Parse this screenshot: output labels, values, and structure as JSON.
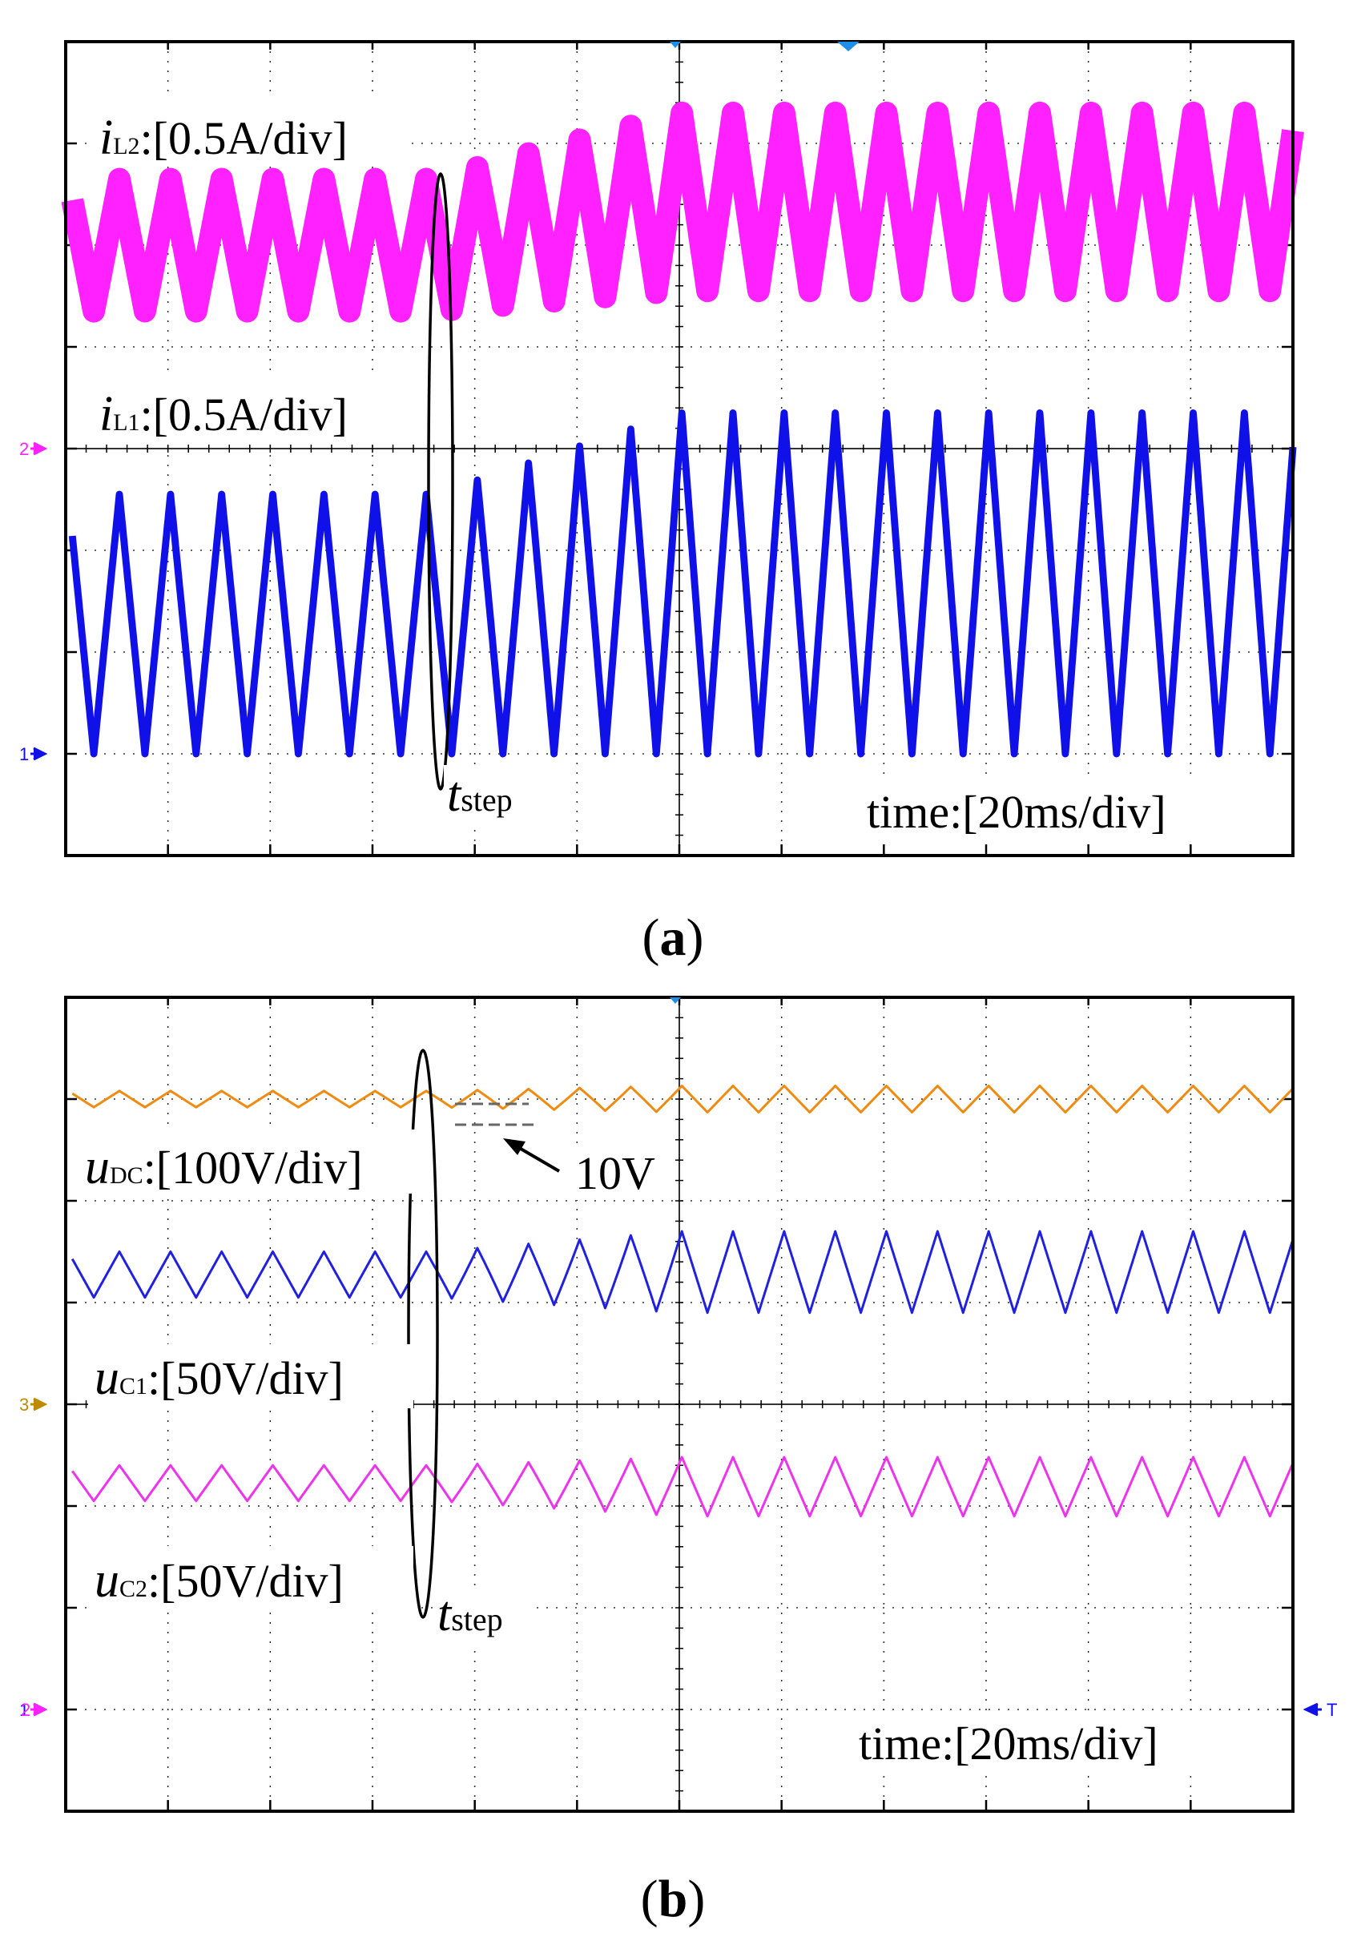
{
  "colors": {
    "iL2": "#ff21ff",
    "iL1": "#1010e8",
    "uDC": "#f08a10",
    "uC1": "#2020e0",
    "uC2": "#ee33ee",
    "marker2": "#ff21ff",
    "marker1": "#1010e8",
    "marker3": "#c08a00",
    "trigger": "#1f8ee8",
    "grid": "#333333"
  },
  "chart_data": [
    {
      "type": "line",
      "panel": "a",
      "caption": {
        "open": "(",
        "letter": "a",
        "close": ")"
      },
      "grid": {
        "h_divisions": 12,
        "v_divisions": 8
      },
      "x": {
        "label": "time:[20ms/div]",
        "ms_per_div": 20,
        "range_ms": [
          0,
          240
        ]
      },
      "step_time_ms": 72,
      "step_label": {
        "var": "t",
        "sub": "step"
      },
      "channel_markers": [
        {
          "id": "2",
          "at_div": 4
        },
        {
          "id": "1",
          "at_div": 7
        }
      ],
      "series": [
        {
          "name": "iL2",
          "label": {
            "var": "i",
            "sub": "L2",
            "scale": ":[0.5A/div]"
          },
          "unit_per_div": "0.5A",
          "ripple_freq_hz": 100,
          "before_step": {
            "min_div": 2.65,
            "max_div": 1.35
          },
          "after_step_ramp_ms": 48,
          "after_step": {
            "min_div": 2.45,
            "max_div": 0.7
          },
          "band_thickness_div": 0.22
        },
        {
          "name": "iL1",
          "label": {
            "var": "i",
            "sub": "L1",
            "scale": ":[0.5A/div]"
          },
          "unit_per_div": "0.5A",
          "ripple_freq_hz": 100,
          "before_step": {
            "min_div": 7.0,
            "max_div": 4.45
          },
          "after_step_ramp_ms": 48,
          "after_step": {
            "min_div": 7.0,
            "max_div": 3.65
          },
          "band_thickness_div": 0.07
        }
      ]
    },
    {
      "type": "line",
      "panel": "b",
      "caption": {
        "open": "(",
        "letter": "b",
        "close": ")"
      },
      "grid": {
        "h_divisions": 12,
        "v_divisions": 8
      },
      "x": {
        "label": "time:[20ms/div]",
        "ms_per_div": 20,
        "range_ms": [
          0,
          240
        ]
      },
      "step_time_ms": 72,
      "step_label": {
        "var": "t",
        "sub": "step"
      },
      "annotation": {
        "text": "10V"
      },
      "channel_markers": [
        {
          "id": "3",
          "at_div": 4
        },
        {
          "id": "1",
          "at_div": 7
        },
        {
          "id": "2",
          "at_div": 7
        }
      ],
      "trigger_marker": {
        "text": "T",
        "at_div": 7
      },
      "series": [
        {
          "name": "uDC",
          "label": {
            "var": "u",
            "sub": "DC",
            "scale": ":[100V/div]"
          },
          "unit_per_div": "100V",
          "ripple_freq_hz": 100,
          "before_step": {
            "min_div": 1.08,
            "max_div": 0.92
          },
          "after_step_ramp_ms": 48,
          "after_step": {
            "min_div": 1.13,
            "max_div": 0.87
          }
        },
        {
          "name": "uC1",
          "label": {
            "var": "u",
            "sub": "C1",
            "scale": ":[50V/div]"
          },
          "unit_per_div": "50V",
          "ripple_freq_hz": 100,
          "before_step": {
            "min_div": 2.95,
            "max_div": 2.5
          },
          "after_step_ramp_ms": 48,
          "after_step": {
            "min_div": 3.1,
            "max_div": 2.3
          }
        },
        {
          "name": "uC2",
          "label": {
            "var": "u",
            "sub": "C2",
            "scale": ":[50V/div]"
          },
          "unit_per_div": "50V",
          "ripple_freq_hz": 100,
          "before_step": {
            "min_div": 4.95,
            "max_div": 4.6
          },
          "after_step_ramp_ms": 48,
          "after_step": {
            "min_div": 5.1,
            "max_div": 4.52
          }
        }
      ]
    }
  ]
}
